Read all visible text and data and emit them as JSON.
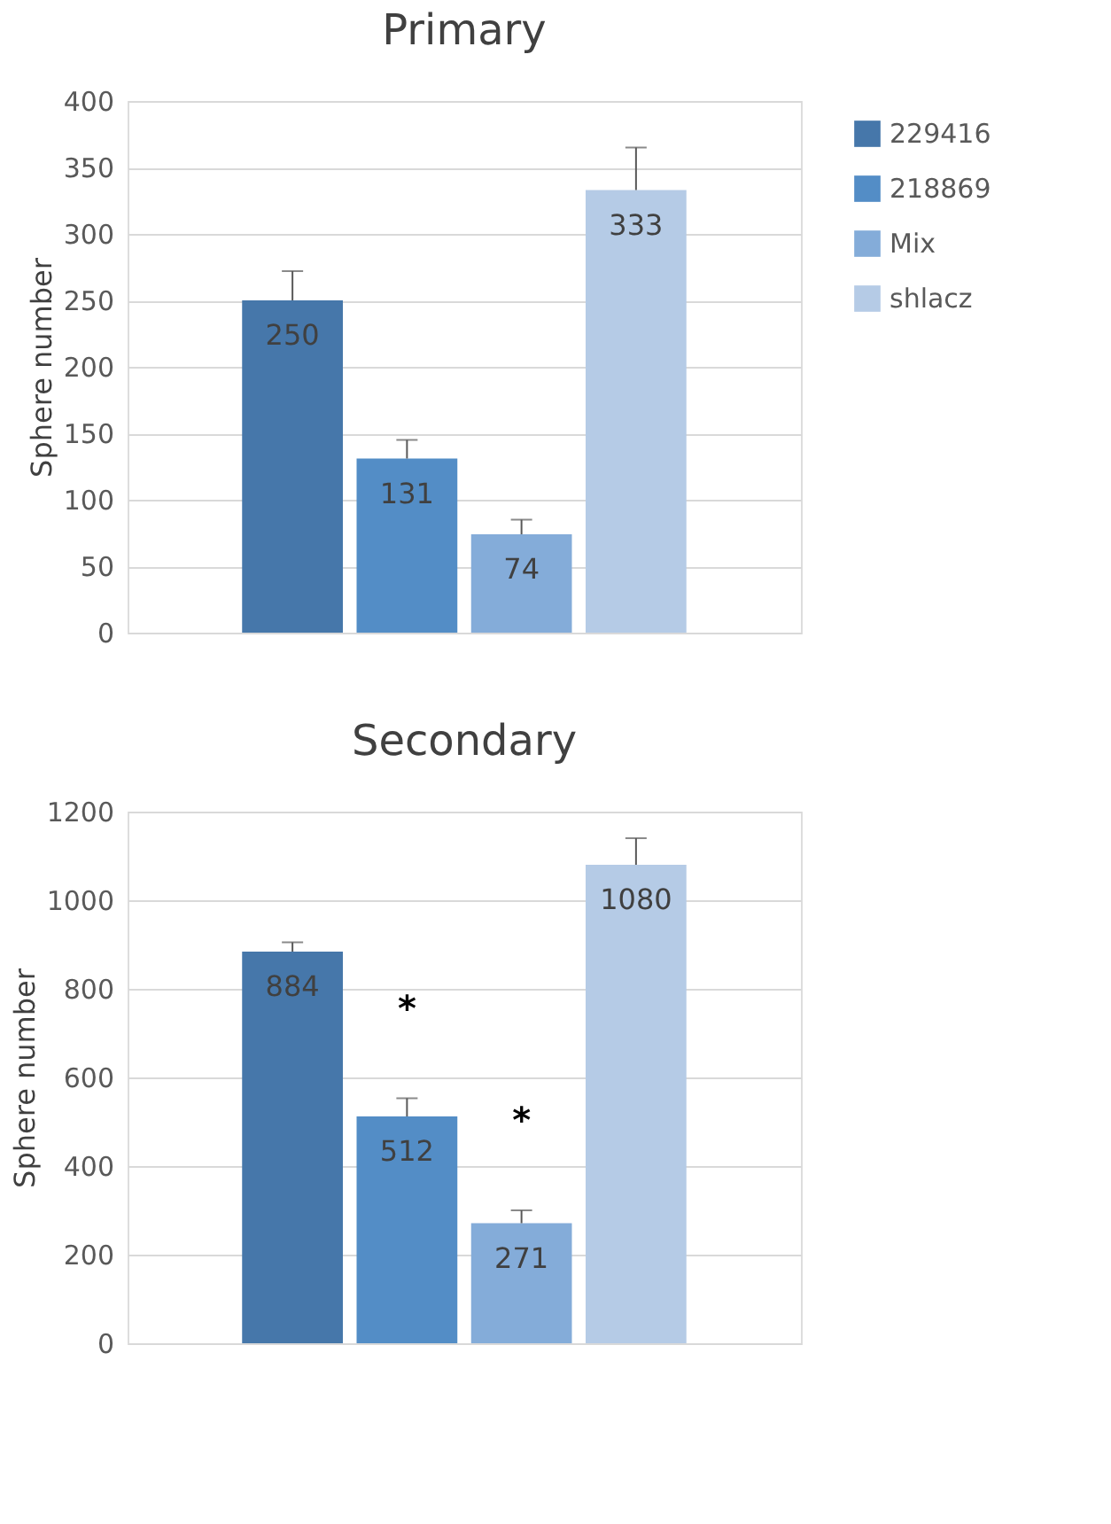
{
  "chart_data": [
    {
      "type": "bar",
      "title": "Primary",
      "ylabel": "Sphere number",
      "categories": [
        null
      ],
      "ylim": [
        0,
        400
      ],
      "yticks": [
        0,
        50,
        100,
        150,
        200,
        250,
        300,
        350,
        400
      ],
      "grid": "y",
      "legend": "right",
      "data_labels": true,
      "series": [
        {
          "name": "229416",
          "color": "#4677aa",
          "values": [
            250
          ],
          "errors": [
            [
              250,
              272
            ]
          ]
        },
        {
          "name": "218869",
          "color": "#538dc6",
          "values": [
            131
          ],
          "errors": [
            [
              131,
              145
            ]
          ]
        },
        {
          "name": "Mix",
          "color": "#84acd9",
          "values": [
            74
          ],
          "errors": [
            [
              74,
              85
            ]
          ]
        },
        {
          "name": "shlacz",
          "color": "#b5cbe6",
          "values": [
            333
          ],
          "errors": [
            [
              333,
              365
            ]
          ]
        }
      ]
    },
    {
      "type": "bar",
      "title": "Secondary",
      "ylabel": "Sphere number",
      "categories": [
        null
      ],
      "ylim": [
        0,
        1200
      ],
      "yticks": [
        0,
        200,
        400,
        600,
        800,
        1000,
        1200
      ],
      "grid": "y",
      "legend": "right",
      "data_labels": true,
      "annotations": [
        "*",
        "*"
      ],
      "series": [
        {
          "name": "229416",
          "color": "#4677aa",
          "values": [
            884
          ],
          "errors": [
            [
              884,
              905
            ]
          ]
        },
        {
          "name": "218869",
          "color": "#538dc6",
          "values": [
            512
          ],
          "errors": [
            [
              512,
              553
            ]
          ]
        },
        {
          "name": "Mix",
          "color": "#84acd9",
          "values": [
            271
          ],
          "errors": [
            [
              271,
              300
            ]
          ]
        },
        {
          "name": "shlacz",
          "color": "#b5cbe6",
          "values": [
            1080
          ],
          "errors": [
            [
              1080,
              1140
            ]
          ]
        }
      ]
    }
  ]
}
